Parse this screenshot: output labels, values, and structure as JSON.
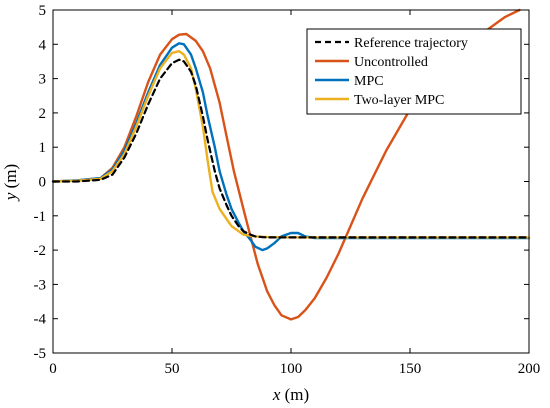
{
  "chart_data": {
    "type": "line",
    "title": "",
    "xlabel_var": "x",
    "xlabel_unit": " (m)",
    "ylabel_var": "y",
    "ylabel_unit": " (m)",
    "xlim": [
      0,
      200
    ],
    "ylim": [
      -5,
      5
    ],
    "xticks": [
      0,
      50,
      100,
      150,
      200
    ],
    "yticks": [
      -5,
      -4,
      -3,
      -2,
      -1,
      0,
      1,
      2,
      3,
      4,
      5
    ],
    "grid": false,
    "legend_position": "top-right",
    "series": [
      {
        "name": "Reference trajectory",
        "color": "#000000",
        "style": "dashed",
        "x": [
          0,
          10,
          20,
          25,
          30,
          35,
          40,
          45,
          50,
          53,
          55,
          58,
          60,
          63,
          65,
          68,
          70,
          73,
          75,
          78,
          80,
          83,
          85,
          88,
          90,
          100,
          150,
          200
        ],
        "y": [
          0,
          0,
          0.05,
          0.2,
          0.7,
          1.4,
          2.25,
          3.0,
          3.45,
          3.55,
          3.5,
          3.2,
          2.8,
          1.9,
          1.2,
          0.3,
          -0.2,
          -0.7,
          -1.0,
          -1.3,
          -1.45,
          -1.55,
          -1.6,
          -1.62,
          -1.63,
          -1.63,
          -1.63,
          -1.63
        ]
      },
      {
        "name": "Uncontrolled",
        "color": "#d95319",
        "style": "solid",
        "x": [
          0,
          10,
          20,
          25,
          30,
          35,
          40,
          45,
          50,
          53,
          56,
          60,
          63,
          66,
          70,
          73,
          76,
          80,
          83,
          86,
          90,
          93,
          96,
          100,
          103,
          106,
          110,
          115,
          120,
          125,
          130,
          140,
          150,
          160,
          170,
          180,
          190,
          196
        ],
        "y": [
          0,
          0.03,
          0.1,
          0.4,
          1.0,
          1.9,
          2.9,
          3.7,
          4.15,
          4.28,
          4.3,
          4.1,
          3.8,
          3.3,
          2.3,
          1.3,
          0.3,
          -0.8,
          -1.6,
          -2.4,
          -3.2,
          -3.6,
          -3.9,
          -4.02,
          -3.95,
          -3.75,
          -3.4,
          -2.8,
          -2.1,
          -1.3,
          -0.5,
          0.9,
          2.1,
          3.0,
          3.7,
          4.3,
          4.8,
          5.0
        ]
      },
      {
        "name": "MPC",
        "color": "#0072bd",
        "style": "solid",
        "x": [
          0,
          10,
          20,
          25,
          30,
          35,
          40,
          45,
          50,
          53,
          55,
          58,
          60,
          63,
          65,
          68,
          70,
          73,
          75,
          78,
          80,
          83,
          85,
          88,
          90,
          93,
          96,
          100,
          103,
          106,
          110,
          115,
          120,
          150,
          200
        ],
        "y": [
          0,
          0.03,
          0.1,
          0.35,
          0.9,
          1.7,
          2.6,
          3.4,
          3.9,
          4.03,
          4.0,
          3.7,
          3.3,
          2.6,
          1.9,
          1.0,
          0.3,
          -0.4,
          -0.8,
          -1.2,
          -1.45,
          -1.7,
          -1.9,
          -2.0,
          -1.95,
          -1.8,
          -1.6,
          -1.5,
          -1.5,
          -1.6,
          -1.65,
          -1.65,
          -1.65,
          -1.65,
          -1.65
        ]
      },
      {
        "name": "Two-layer MPC",
        "color": "#edb120",
        "style": "solid",
        "x": [
          0,
          10,
          20,
          25,
          30,
          35,
          40,
          45,
          50,
          53,
          55,
          58,
          60,
          63,
          65,
          67,
          70,
          73,
          75,
          78,
          80,
          85,
          90,
          100,
          150,
          200
        ],
        "y": [
          0,
          0.02,
          0.08,
          0.3,
          0.8,
          1.6,
          2.5,
          3.3,
          3.75,
          3.8,
          3.7,
          3.3,
          2.7,
          1.6,
          0.6,
          -0.3,
          -0.8,
          -1.1,
          -1.3,
          -1.45,
          -1.55,
          -1.6,
          -1.62,
          -1.63,
          -1.63,
          -1.63
        ]
      }
    ]
  }
}
